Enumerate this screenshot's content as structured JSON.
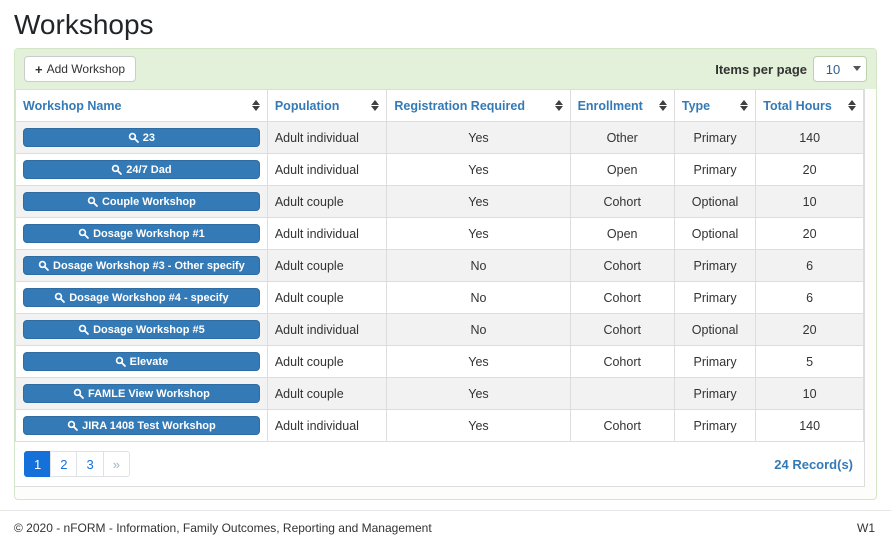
{
  "page": {
    "title": "Workshops"
  },
  "toolbar": {
    "add_button_label": "Add Workshop",
    "add_button_icon": "plus-icon",
    "items_per_page_label": "Items per page",
    "items_per_page_value": "10"
  },
  "table": {
    "columns": [
      "Workshop Name",
      "Population",
      "Registration Required",
      "Enrollment",
      "Type",
      "Total Hours"
    ],
    "rows": [
      {
        "name": "23",
        "population": "Adult individual",
        "registration": "Yes",
        "enrollment": "Other",
        "type": "Primary",
        "hours": "140"
      },
      {
        "name": "24/7 Dad",
        "population": "Adult individual",
        "registration": "Yes",
        "enrollment": "Open",
        "type": "Primary",
        "hours": "20"
      },
      {
        "name": "Couple Workshop",
        "population": "Adult couple",
        "registration": "Yes",
        "enrollment": "Cohort",
        "type": "Optional",
        "hours": "10"
      },
      {
        "name": "Dosage Workshop #1",
        "population": "Adult individual",
        "registration": "Yes",
        "enrollment": "Open",
        "type": "Optional",
        "hours": "20"
      },
      {
        "name": "Dosage Workshop #3 - Other specify",
        "population": "Adult couple",
        "registration": "No",
        "enrollment": "Cohort",
        "type": "Primary",
        "hours": "6"
      },
      {
        "name": "Dosage Workshop #4 - specify",
        "population": "Adult couple",
        "registration": "No",
        "enrollment": "Cohort",
        "type": "Primary",
        "hours": "6"
      },
      {
        "name": "Dosage Workshop #5",
        "population": "Adult individual",
        "registration": "No",
        "enrollment": "Cohort",
        "type": "Optional",
        "hours": "20"
      },
      {
        "name": "Elevate",
        "population": "Adult couple",
        "registration": "Yes",
        "enrollment": "Cohort",
        "type": "Primary",
        "hours": "5"
      },
      {
        "name": "FAMLE View Workshop",
        "population": "Adult couple",
        "registration": "Yes",
        "enrollment": "",
        "type": "Primary",
        "hours": "10"
      },
      {
        "name": "JIRA 1408 Test Workshop",
        "population": "Adult individual",
        "registration": "Yes",
        "enrollment": "Cohort",
        "type": "Primary",
        "hours": "140"
      }
    ],
    "row_button_icon": "magnifier-icon",
    "sort_icon": "sort-arrows-icon"
  },
  "pagination": {
    "pages": [
      "1",
      "2",
      "3"
    ],
    "active_page": "1",
    "next_label": "»",
    "records_text": "24 Record(s)"
  },
  "footer": {
    "copyright": "© 2020 - nFORM - Information, Family Outcomes, Reporting and Management",
    "version": "W1"
  },
  "colors": {
    "primary_blue": "#337ab7",
    "primary_blue_border": "#2e6da4",
    "pagination_blue": "#1670d9",
    "toolbar_green": "#e3f0da",
    "panel_border_green": "#d3e6c8",
    "row_stripe_gray": "#f2f2f2",
    "table_border": "#dddddd"
  }
}
